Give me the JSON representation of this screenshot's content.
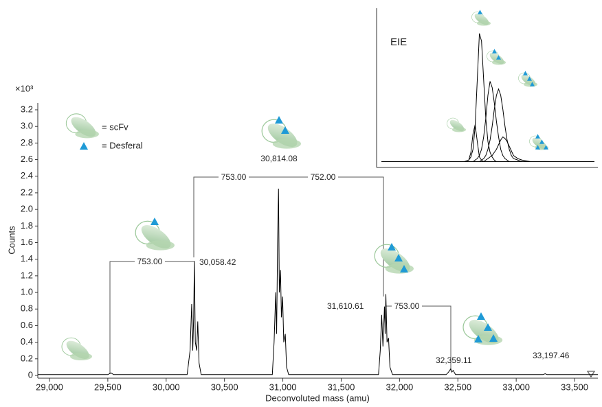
{
  "chart_data": [
    {
      "type": "line",
      "x_label": "Deconvoluted mass (amu)",
      "y_label": "Counts",
      "y_exponent": "×10³",
      "xlim": [
        28900,
        33700
      ],
      "ylim": [
        0,
        3.2
      ],
      "xticks": [
        {
          "value": 29000,
          "label": "29,000"
        },
        {
          "value": 29500,
          "label": "29,500"
        },
        {
          "value": 30000,
          "label": "30,000"
        },
        {
          "value": 30500,
          "label": "30,500"
        },
        {
          "value": 31000,
          "label": "31,000"
        },
        {
          "value": 31500,
          "label": "31,500"
        },
        {
          "value": 32000,
          "label": "32,000"
        },
        {
          "value": 32500,
          "label": "32,500"
        },
        {
          "value": 33000,
          "label": "33,000"
        },
        {
          "value": 33500,
          "label": "33,500"
        }
      ],
      "yticks": [
        0,
        0.2,
        0.4,
        0.6,
        0.8,
        {
          "value": 1,
          "label": "1.0"
        },
        1.2,
        1.4,
        1.6,
        1.8,
        {
          "value": 2,
          "label": "2.0"
        },
        2.2,
        2.4,
        2.6,
        2.8,
        {
          "value": 3,
          "label": "3.0"
        },
        3.2
      ],
      "x": [
        28900,
        29500,
        29527,
        29550,
        30180,
        30205,
        30219,
        30228,
        30236,
        30242,
        30250,
        30262,
        30271,
        30282,
        30300,
        30910,
        30925,
        30939,
        30947,
        30955,
        30963,
        30970,
        30980,
        30988,
        30998,
        31008,
        31021,
        31032,
        31050,
        31820,
        31835,
        31847,
        31858,
        31871,
        31877,
        31883,
        31893,
        31906,
        31918,
        31940,
        32400,
        32420,
        32430,
        32439,
        32448,
        32460,
        32480,
        33230,
        33248,
        33265,
        33700
      ],
      "series": [
        {
          "color": "#000000",
          "values": [
            0.01,
            0.01,
            0.03,
            0.01,
            0.01,
            0.3,
            0.86,
            0.3,
            0.7,
            1.38,
            0.4,
            0.3,
            0.65,
            0.15,
            0.01,
            0.01,
            0.4,
            1.0,
            0.5,
            1.6,
            2.25,
            1.0,
            1.27,
            0.7,
            0.95,
            0.4,
            0.5,
            0.1,
            0.01,
            0.01,
            0.3,
            0.73,
            0.35,
            0.83,
            0.5,
            0.98,
            0.4,
            0.45,
            0.1,
            0.01,
            0.01,
            0.04,
            0.06,
            0.08,
            0.04,
            0.06,
            0.01,
            0.01,
            0.02,
            0.01,
            0.01
          ]
        }
      ],
      "annotations": [
        "753.00",
        "753.00",
        "752.00",
        "753.00",
        "30,058.42",
        "30,814.08",
        "31,610.61",
        "32,359.11",
        "33,197.46"
      ],
      "legend": [
        "= scFv",
        "= Desferal"
      ]
    },
    {
      "type": "line",
      "title": "EIE",
      "xlim": [
        0,
        100
      ],
      "ylim": [
        0,
        100
      ],
      "x": [
        0,
        36,
        39,
        41,
        42,
        43,
        44,
        45,
        46,
        47,
        48,
        49,
        50,
        51,
        52,
        53,
        54,
        55,
        56,
        57,
        58,
        59,
        60,
        61,
        62,
        64,
        66,
        70,
        100
      ],
      "series": [
        {
          "color": "#000000",
          "values": [
            2,
            2,
            2,
            3,
            8,
            20,
            26,
            15,
            5,
            3,
            2,
            2,
            2,
            2,
            2,
            2,
            2,
            2,
            2,
            2,
            2,
            2,
            2,
            2,
            2,
            2,
            2,
            2,
            2
          ]
        },
        {
          "color": "#000000",
          "values": [
            2,
            2,
            2,
            3,
            5,
            10,
            25,
            55,
            85,
            80,
            55,
            30,
            15,
            8,
            5,
            3,
            2,
            2,
            2,
            2,
            2,
            2,
            2,
            2,
            2,
            2,
            2,
            2,
            2
          ]
        },
        {
          "color": "#000000",
          "values": [
            2,
            2,
            2,
            2,
            2,
            2,
            3,
            4,
            6,
            10,
            18,
            30,
            45,
            54,
            50,
            40,
            28,
            18,
            10,
            6,
            4,
            3,
            2,
            2,
            2,
            2,
            2,
            2,
            2
          ]
        },
        {
          "color": "#000000",
          "values": [
            2,
            2,
            2,
            2,
            2,
            2,
            2,
            2,
            2,
            3,
            4,
            6,
            10,
            16,
            25,
            36,
            45,
            49,
            45,
            36,
            25,
            16,
            10,
            6,
            4,
            3,
            2,
            2,
            2
          ]
        },
        {
          "color": "#000000",
          "values": [
            2,
            2,
            2,
            2,
            2,
            2,
            2,
            2,
            2,
            2,
            2,
            3,
            4,
            5,
            6,
            8,
            10,
            13,
            16,
            18,
            17,
            15,
            12,
            9,
            6,
            4,
            3,
            2,
            2
          ]
        }
      ]
    }
  ]
}
